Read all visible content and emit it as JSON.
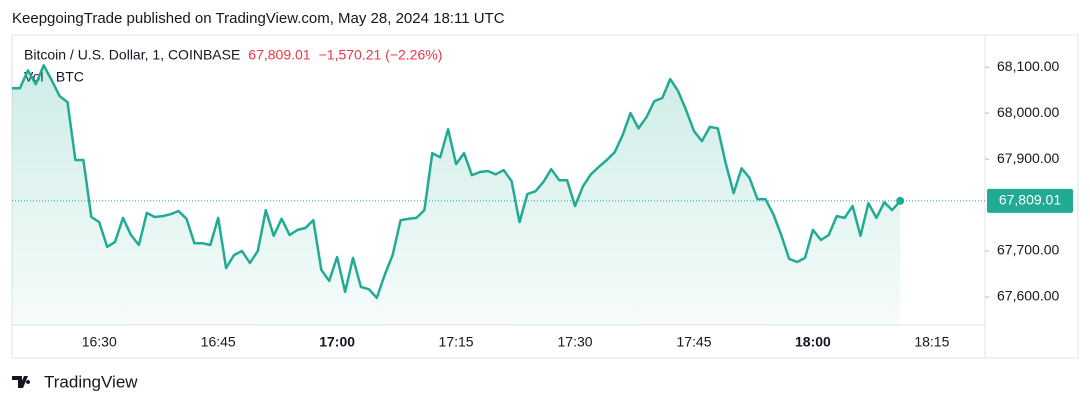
{
  "header": "KeepgoingTrade published on TradingView.com, May 28, 2024 18:11 UTC",
  "footer": "TradingView",
  "chart_data": {
    "type": "area",
    "title": "Bitcoin / U.S. Dollar, 1, COINBASE",
    "last_price": {
      "value": 67809.01,
      "label": "67,809.01"
    },
    "change": "−1,570.21 (−2.26%)",
    "subtitle": "Vol · BTC",
    "color": "#22ab94",
    "x": [
      "16:19",
      "16:20",
      "16:21",
      "16:22",
      "16:23",
      "16:24",
      "16:25",
      "16:26",
      "16:27",
      "16:28",
      "16:29",
      "16:30",
      "16:31",
      "16:32",
      "16:33",
      "16:34",
      "16:35",
      "16:36",
      "16:37",
      "16:38",
      "16:39",
      "16:40",
      "16:41",
      "16:42",
      "16:43",
      "16:44",
      "16:45",
      "16:46",
      "16:47",
      "16:48",
      "16:49",
      "16:50",
      "16:51",
      "16:52",
      "16:53",
      "16:54",
      "16:55",
      "16:56",
      "16:57",
      "16:58",
      "16:59",
      "17:00",
      "17:01",
      "17:02",
      "17:03",
      "17:04",
      "17:05",
      "17:06",
      "17:07",
      "17:08",
      "17:09",
      "17:10",
      "17:11",
      "17:12",
      "17:13",
      "17:14",
      "17:15",
      "17:16",
      "17:17",
      "17:18",
      "17:19",
      "17:20",
      "17:21",
      "17:22",
      "17:23",
      "17:24",
      "17:25",
      "17:26",
      "17:27",
      "17:28",
      "17:29",
      "17:30",
      "17:31",
      "17:32",
      "17:33",
      "17:34",
      "17:35",
      "17:36",
      "17:37",
      "17:38",
      "17:39",
      "17:40",
      "17:41",
      "17:42",
      "17:43",
      "17:44",
      "17:45",
      "17:46",
      "17:47",
      "17:48",
      "17:49",
      "17:50",
      "17:51",
      "17:52",
      "17:53",
      "17:54",
      "17:55",
      "17:56",
      "17:57",
      "17:58",
      "17:59",
      "18:00",
      "18:01",
      "18:02",
      "18:03",
      "18:04",
      "18:05",
      "18:06",
      "18:07",
      "18:08",
      "18:09",
      "18:10",
      "18:11"
    ],
    "values": [
      68054,
      68054,
      68093,
      68063,
      68104,
      68072,
      68037,
      68024,
      67898,
      67898,
      67774,
      67763,
      67709,
      67720,
      67772,
      67735,
      67713,
      67783,
      67774,
      67776,
      67780,
      67787,
      67770,
      67717,
      67717,
      67713,
      67772,
      67663,
      67691,
      67700,
      67674,
      67700,
      67789,
      67733,
      67770,
      67735,
      67746,
      67750,
      67767,
      67659,
      67635,
      67687,
      67611,
      67685,
      67622,
      67617,
      67598,
      67648,
      67691,
      67767,
      67770,
      67772,
      67789,
      67913,
      67904,
      67965,
      67889,
      67913,
      67865,
      67872,
      67874,
      67867,
      67876,
      67852,
      67763,
      67824,
      67830,
      67850,
      67878,
      67854,
      67854,
      67798,
      67841,
      67867,
      67883,
      67898,
      67915,
      67952,
      68000,
      67967,
      67991,
      68026,
      68033,
      68074,
      68048,
      68007,
      67961,
      67939,
      67970,
      67967,
      67891,
      67826,
      67880,
      67859,
      67813,
      67813,
      67780,
      67735,
      67683,
      67676,
      67685,
      67746,
      67724,
      67735,
      67776,
      67772,
      67798,
      67733,
      67804,
      67772,
      67806,
      67789,
      67809.01
    ],
    "ylim": [
      67539,
      68170
    ],
    "yticks": [
      {
        "value": 67600,
        "label": "67,600.00"
      },
      {
        "value": 67700,
        "label": "67,700.00"
      },
      {
        "value": 67900,
        "label": "67,900.00"
      },
      {
        "value": 68000,
        "label": "68,000.00"
      },
      {
        "value": 68100,
        "label": "68,100.00"
      }
    ],
    "xticks": [
      "16:30",
      "16:45",
      "17:00",
      "17:15",
      "17:30",
      "17:45",
      "18:00",
      "18:15"
    ],
    "grid": false
  }
}
